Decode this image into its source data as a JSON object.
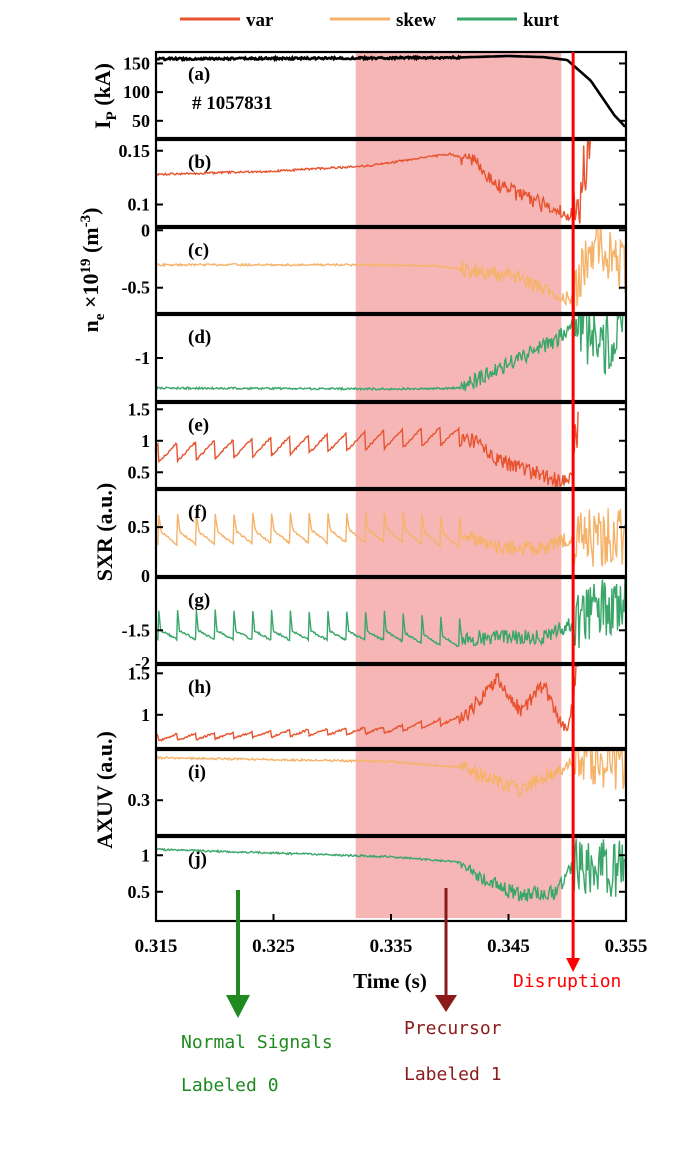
{
  "legend": [
    {
      "name": "var",
      "color": "#e8532f"
    },
    {
      "name": "skew",
      "color": "#f5b36a"
    },
    {
      "name": "kurt",
      "color": "#3aa66a"
    }
  ],
  "colors": {
    "precursor_band": "#f7b6b6",
    "disruption": "#ff0000",
    "ip": "#000000",
    "normal_arrow": "#1f8a1f",
    "precursor_arrow": "#8b1a1a",
    "overlap_dark": "#6b7a3f"
  },
  "shot_label": "# 1057831",
  "ylabels": {
    "ip_main": "I",
    "ip_sub": "P",
    "ip_unit": " (kA)",
    "ne_main": "n",
    "ne_sub": "e",
    "ne_mid": " ×10",
    "ne_sup": "19",
    "ne_unit": " (m",
    "ne_unit_sup": "-3",
    "ne_close": ")",
    "sxr": "SXR (a.u.)",
    "axuv": "AXUV (a.u.)"
  },
  "annotations": {
    "disruption": "Disruption",
    "normal_line1": "Normal Signals",
    "normal_line2": "Labeled 0",
    "precursor_line1": "Precursor",
    "precursor_line2": "Labeled 1"
  },
  "chart_data": {
    "type": "line",
    "xlabel": "Time (s)",
    "xlim": [
      0.315,
      0.355
    ],
    "xticks": [
      "0.315",
      "0.325",
      "0.335",
      "0.345",
      "0.355"
    ],
    "precursor_window": [
      0.332,
      0.3495
    ],
    "disruption_time": 0.3505,
    "panels": [
      {
        "id": "a",
        "label": "(a)",
        "signal": "Ip",
        "ylim": [
          20,
          170
        ],
        "yticks": [
          "150",
          "100",
          "50"
        ],
        "ytick_values": [
          150,
          100,
          50
        ],
        "series": [
          {
            "kind": "ip",
            "color": "#000000",
            "points": [
              [
                0.315,
                158
              ],
              [
                0.33,
                159
              ],
              [
                0.34,
                160
              ],
              [
                0.345,
                163
              ],
              [
                0.348,
                161
              ],
              [
                0.35,
                156
              ],
              [
                0.352,
                120
              ],
              [
                0.354,
                60
              ],
              [
                0.355,
                38
              ]
            ]
          }
        ]
      },
      {
        "id": "b",
        "label": "(b)",
        "signal": "ne var",
        "ylim": [
          0.08,
          0.16
        ],
        "yticks": [
          "0.15",
          "0.1"
        ],
        "ytick_values": [
          0.15,
          0.1
        ],
        "series": [
          {
            "kind": "var",
            "color": "#e8532f",
            "points": [
              [
                0.315,
                0.128
              ],
              [
                0.325,
                0.131
              ],
              [
                0.333,
                0.136
              ],
              [
                0.34,
                0.147
              ],
              [
                0.342,
                0.14
              ],
              [
                0.344,
                0.118
              ],
              [
                0.347,
                0.104
              ],
              [
                0.349,
                0.095
              ],
              [
                0.3505,
                0.089
              ],
              [
                0.351,
                0.105
              ],
              [
                0.352,
                0.165
              ]
            ]
          }
        ]
      },
      {
        "id": "c",
        "label": "(c)",
        "signal": "ne skew",
        "ylim": [
          -0.72,
          0.02
        ],
        "yticks": [
          "0",
          "-0.5"
        ],
        "ytick_values": [
          0,
          -0.5
        ],
        "series": [
          {
            "kind": "skew",
            "color": "#f5b36a",
            "points": [
              [
                0.315,
                -0.3
              ],
              [
                0.333,
                -0.3
              ],
              [
                0.339,
                -0.31
              ],
              [
                0.342,
                -0.35
              ],
              [
                0.346,
                -0.42
              ],
              [
                0.349,
                -0.55
              ],
              [
                0.3505,
                -0.6
              ],
              [
                0.352,
                -0.1
              ],
              [
                0.355,
                -0.3
              ]
            ]
          }
        ]
      },
      {
        "id": "d",
        "label": "(d)",
        "signal": "ne kurt",
        "ylim": [
          -1.5,
          -0.5
        ],
        "yticks": [
          "-1"
        ],
        "ytick_values": [
          -1
        ],
        "series": [
          {
            "kind": "kurt",
            "color": "#3aa66a",
            "points": [
              [
                0.315,
                -1.35
              ],
              [
                0.335,
                -1.36
              ],
              [
                0.341,
                -1.35
              ],
              [
                0.343,
                -1.2
              ],
              [
                0.346,
                -1.0
              ],
              [
                0.349,
                -0.8
              ],
              [
                0.3505,
                -0.6
              ],
              [
                0.353,
                -0.9
              ],
              [
                0.355,
                -0.6
              ]
            ]
          }
        ]
      },
      {
        "id": "e",
        "label": "(e)",
        "signal": "SXR var",
        "ylim": [
          0.25,
          1.6
        ],
        "yticks": [
          "1.5",
          "1",
          "0.5"
        ],
        "ytick_values": [
          1.5,
          1,
          0.5
        ],
        "series": [
          {
            "kind": "var",
            "color": "#e8532f",
            "points": [
              [
                0.315,
                0.8
              ],
              [
                0.34,
                1.08
              ],
              [
                0.342,
                1.0
              ],
              [
                0.344,
                0.7
              ],
              [
                0.347,
                0.5
              ],
              [
                0.349,
                0.38
              ],
              [
                0.3505,
                0.4
              ],
              [
                0.351,
                1.5
              ]
            ]
          }
        ]
      },
      {
        "id": "f",
        "label": "(f)",
        "signal": "SXR skew",
        "ylim": [
          0,
          0.88
        ],
        "yticks": [
          "0.5",
          "0"
        ],
        "ytick_values": [
          0.5,
          0
        ],
        "series": [
          {
            "kind": "skew",
            "color": "#f5b36a",
            "points": [
              [
                0.315,
                0.45
              ],
              [
                0.335,
                0.48
              ],
              [
                0.341,
                0.42
              ],
              [
                0.344,
                0.3
              ],
              [
                0.348,
                0.28
              ],
              [
                0.3505,
                0.4
              ],
              [
                0.355,
                0.4
              ]
            ]
          }
        ]
      },
      {
        "id": "g",
        "label": "(g)",
        "signal": "SXR kurt",
        "ylim": [
          -2,
          -0.7
        ],
        "yticks": [
          "-1.5",
          "-2"
        ],
        "ytick_values": [
          -1.5,
          -2
        ],
        "series": [
          {
            "kind": "kurt",
            "color": "#3aa66a",
            "points": [
              [
                0.315,
                -1.5
              ],
              [
                0.335,
                -1.52
              ],
              [
                0.341,
                -1.62
              ],
              [
                0.348,
                -1.6
              ],
              [
                0.3505,
                -1.4
              ],
              [
                0.355,
                -1.0
              ]
            ]
          }
        ]
      },
      {
        "id": "h",
        "label": "(h)",
        "signal": "AXUV var",
        "ylim": [
          0.6,
          1.6
        ],
        "yticks": [
          "1.5",
          "1"
        ],
        "ytick_values": [
          1.5,
          1
        ],
        "series": [
          {
            "kind": "var",
            "color": "#e8532f",
            "points": [
              [
                0.315,
                0.72
              ],
              [
                0.335,
                0.82
              ],
              [
                0.341,
                0.95
              ],
              [
                0.343,
                1.25
              ],
              [
                0.344,
                1.45
              ],
              [
                0.346,
                1.05
              ],
              [
                0.348,
                1.35
              ],
              [
                0.35,
                0.75
              ],
              [
                0.351,
                1.6
              ]
            ]
          }
        ]
      },
      {
        "id": "i",
        "label": "(i)",
        "signal": "AXUV skew",
        "ylim": [
          0.12,
          0.56
        ],
        "yticks": [
          "0.3"
        ],
        "ytick_values": [
          0.3
        ],
        "series": [
          {
            "kind": "skew",
            "color": "#f5b36a",
            "points": [
              [
                0.315,
                0.52
              ],
              [
                0.335,
                0.5
              ],
              [
                0.341,
                0.47
              ],
              [
                0.343,
                0.42
              ],
              [
                0.346,
                0.35
              ],
              [
                0.349,
                0.45
              ],
              [
                0.3505,
                0.5
              ],
              [
                0.355,
                0.5
              ]
            ]
          }
        ]
      },
      {
        "id": "j",
        "label": "(j)",
        "signal": "AXUV kurt",
        "ylim": [
          0.1,
          1.25
        ],
        "yticks": [
          "1",
          "0.5"
        ],
        "ytick_values": [
          1,
          0.5
        ],
        "series": [
          {
            "kind": "kurt",
            "color": "#3aa66a",
            "points": [
              [
                0.315,
                1.08
              ],
              [
                0.335,
                0.98
              ],
              [
                0.341,
                0.9
              ],
              [
                0.343,
                0.65
              ],
              [
                0.346,
                0.45
              ],
              [
                0.349,
                0.5
              ],
              [
                0.3505,
                0.85
              ],
              [
                0.355,
                0.8
              ]
            ]
          }
        ]
      }
    ]
  }
}
